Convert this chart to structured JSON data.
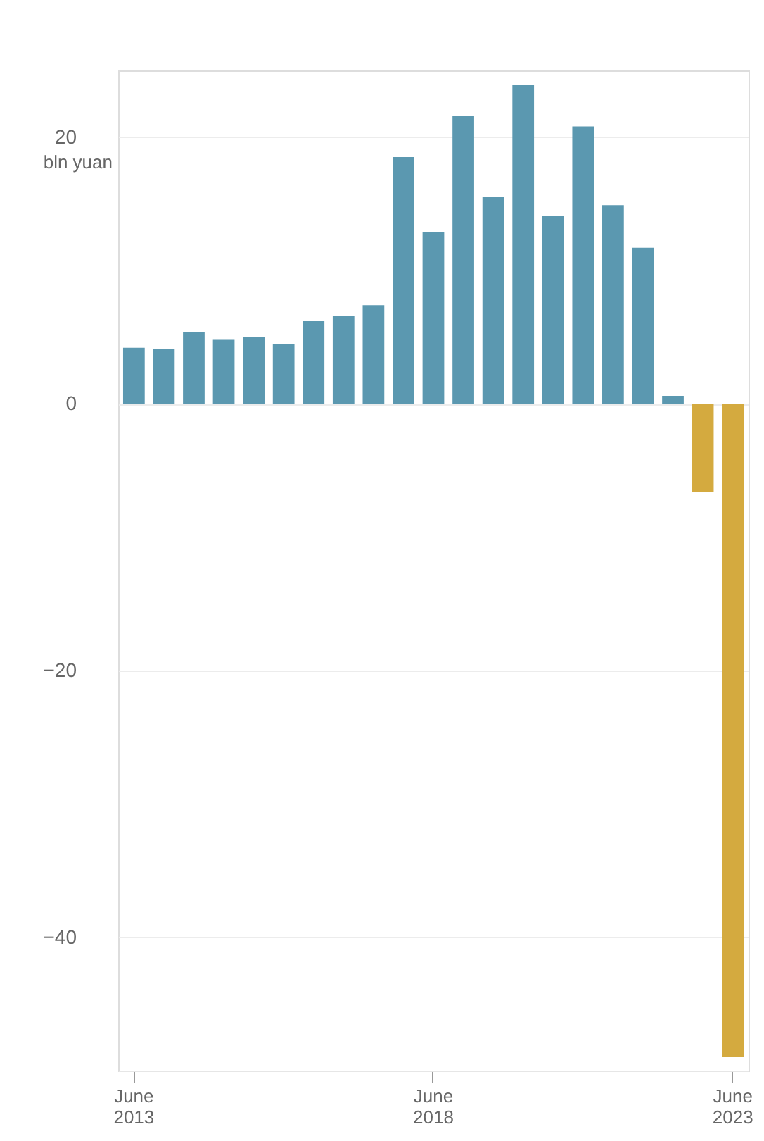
{
  "chart_data": {
    "type": "bar",
    "ylabel": "bln yuan",
    "categories": [
      "June 2013",
      null,
      null,
      null,
      null,
      null,
      null,
      null,
      null,
      null,
      "June 2018",
      null,
      null,
      null,
      null,
      null,
      null,
      null,
      null,
      null,
      "June 2023"
    ],
    "values": [
      4.2,
      4.1,
      5.4,
      4.8,
      5.0,
      4.5,
      6.2,
      6.6,
      7.4,
      18.5,
      12.9,
      21.6,
      15.5,
      23.9,
      14.1,
      20.8,
      14.9,
      11.7,
      0.6,
      -6.6,
      -49
    ],
    "colors": [
      "#5b98b0",
      "#5b98b0",
      "#5b98b0",
      "#5b98b0",
      "#5b98b0",
      "#5b98b0",
      "#5b98b0",
      "#5b98b0",
      "#5b98b0",
      "#5b98b0",
      "#5b98b0",
      "#5b98b0",
      "#5b98b0",
      "#5b98b0",
      "#5b98b0",
      "#5b98b0",
      "#5b98b0",
      "#5b98b0",
      "#5b98b0",
      "#d4aa3f",
      "#d4aa3f"
    ],
    "ylim": [
      -50,
      25
    ],
    "yticks": [
      -40,
      -20,
      0,
      20
    ],
    "grid": "y"
  }
}
